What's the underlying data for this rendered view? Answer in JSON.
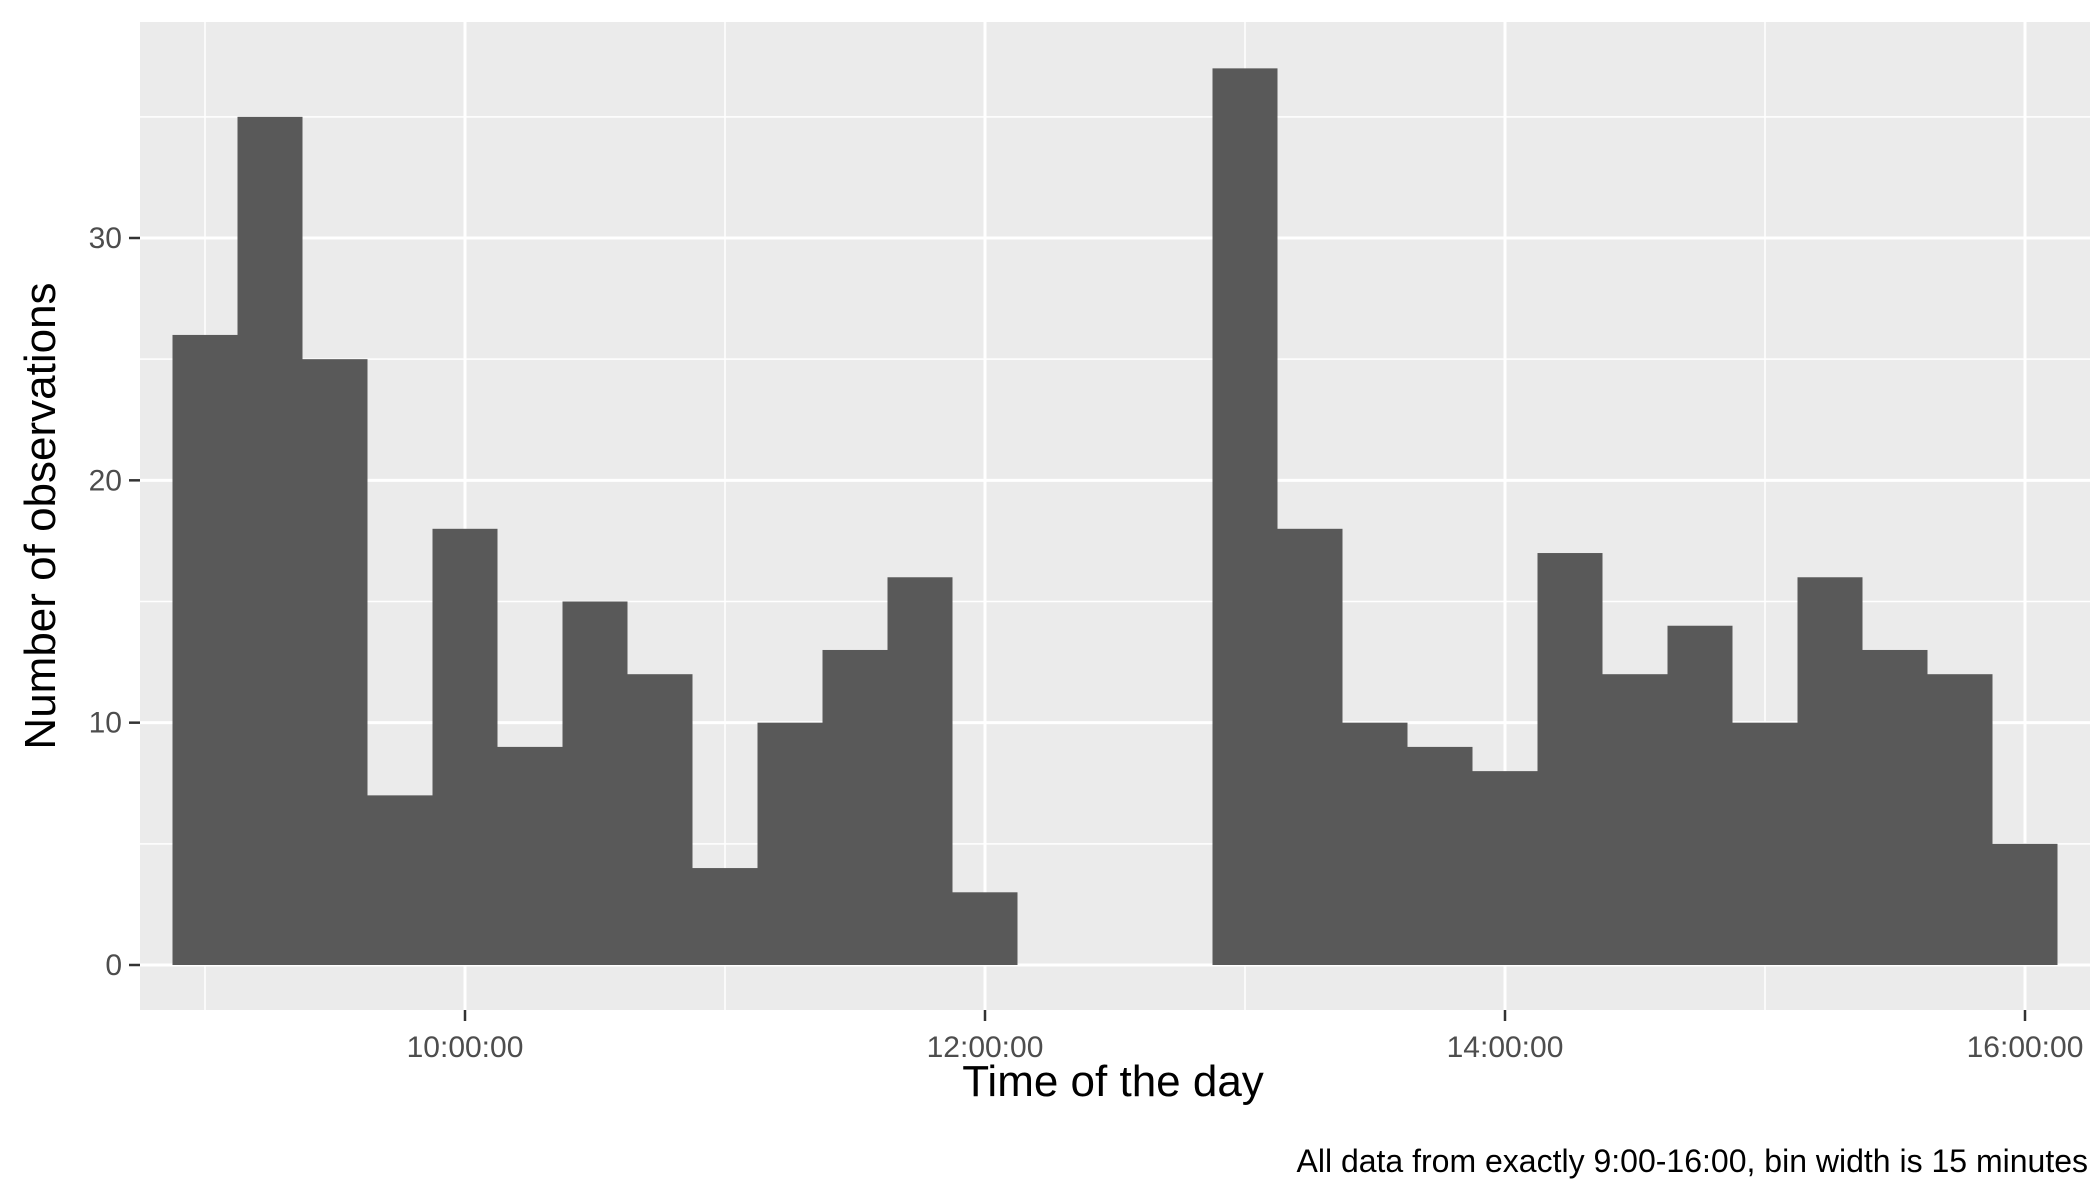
{
  "chart_data": {
    "type": "bar",
    "subtype": "histogram",
    "xlabel": "Time of the day",
    "ylabel": "Number of observations",
    "caption": "All data from exactly 9:00-16:00, bin width is 15 minutes",
    "bin_width_minutes": 15,
    "x_ticks": [
      {
        "value": "10:00:00",
        "label": "10:00:00"
      },
      {
        "value": "12:00:00",
        "label": "12:00:00"
      },
      {
        "value": "14:00:00",
        "label": "14:00:00"
      },
      {
        "value": "16:00:00",
        "label": "16:00:00"
      }
    ],
    "xlim": [
      "08:45:00",
      "16:15:00"
    ],
    "y_ticks": [
      0,
      10,
      20,
      30
    ],
    "ylim": [
      0,
      37
    ],
    "grid": true,
    "bins": [
      {
        "start": "08:52:30",
        "end": "09:07:30",
        "count": 26
      },
      {
        "start": "09:07:30",
        "end": "09:22:30",
        "count": 35
      },
      {
        "start": "09:22:30",
        "end": "09:37:30",
        "count": 25
      },
      {
        "start": "09:37:30",
        "end": "09:52:30",
        "count": 7
      },
      {
        "start": "09:52:30",
        "end": "10:07:30",
        "count": 18
      },
      {
        "start": "10:07:30",
        "end": "10:22:30",
        "count": 9
      },
      {
        "start": "10:22:30",
        "end": "10:37:30",
        "count": 15
      },
      {
        "start": "10:37:30",
        "end": "10:52:30",
        "count": 12
      },
      {
        "start": "10:52:30",
        "end": "11:07:30",
        "count": 4
      },
      {
        "start": "11:07:30",
        "end": "11:22:30",
        "count": 10
      },
      {
        "start": "11:22:30",
        "end": "11:37:30",
        "count": 13
      },
      {
        "start": "11:37:30",
        "end": "11:52:30",
        "count": 16
      },
      {
        "start": "11:52:30",
        "end": "12:07:30",
        "count": 3
      },
      {
        "start": "12:52:30",
        "end": "13:07:30",
        "count": 37
      },
      {
        "start": "13:07:30",
        "end": "13:22:30",
        "count": 18
      },
      {
        "start": "13:22:30",
        "end": "13:37:30",
        "count": 10
      },
      {
        "start": "13:37:30",
        "end": "13:52:30",
        "count": 9
      },
      {
        "start": "13:52:30",
        "end": "14:07:30",
        "count": 8
      },
      {
        "start": "14:07:30",
        "end": "14:22:30",
        "count": 17
      },
      {
        "start": "14:22:30",
        "end": "14:37:30",
        "count": 12
      },
      {
        "start": "14:37:30",
        "end": "14:52:30",
        "count": 14
      },
      {
        "start": "14:52:30",
        "end": "15:07:30",
        "count": 10
      },
      {
        "start": "15:07:30",
        "end": "15:22:30",
        "count": 16
      },
      {
        "start": "15:22:30",
        "end": "15:37:30",
        "count": 13
      },
      {
        "start": "15:37:30",
        "end": "15:52:30",
        "count": 12
      },
      {
        "start": "15:52:30",
        "end": "16:07:30",
        "count": 5
      }
    ]
  },
  "colors": {
    "panel_background": "#ebebeb",
    "grid_major": "#ffffff",
    "grid_minor": "#f7f7f7",
    "bar_fill": "#595959",
    "tick_mark": "#333333"
  }
}
